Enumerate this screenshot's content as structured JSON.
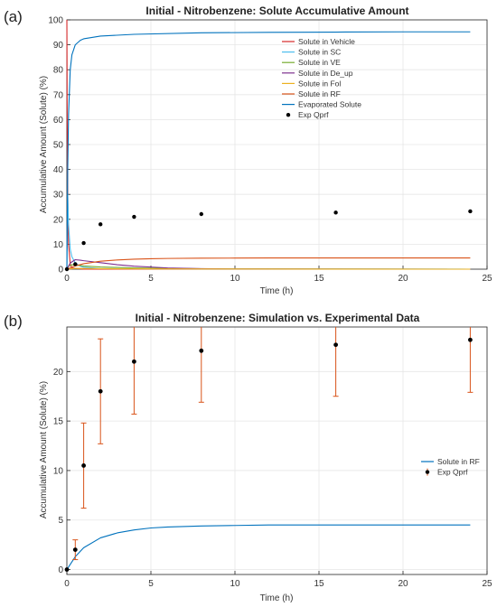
{
  "chart_data": [
    {
      "panel_label": "(a)",
      "type": "line",
      "title": "Initial - Nitrobenzene: Solute Accumulative Amount",
      "xlabel": "Time (h)",
      "ylabel": "Accumulative Amount (Solute) (%)",
      "xlim": [
        0,
        25
      ],
      "ylim": [
        0,
        100
      ],
      "xticks": [
        0,
        5,
        10,
        15,
        20,
        25
      ],
      "yticks": [
        0,
        10,
        20,
        30,
        40,
        50,
        60,
        70,
        80,
        90,
        100
      ],
      "grid": true,
      "legend_position": "upper-right",
      "series": [
        {
          "name": "Solute in Vehicle",
          "color": "#d62728",
          "kind": "line",
          "x": [
            0,
            0.02,
            0.05,
            0.1,
            0.2,
            0.3,
            1,
            24
          ],
          "y": [
            100,
            60,
            30,
            10,
            2,
            0.5,
            0,
            0
          ]
        },
        {
          "name": "Solute in SC",
          "color": "#4dbeee",
          "kind": "line",
          "x": [
            0,
            0.05,
            0.1,
            0.2,
            0.3,
            0.5,
            0.8,
            1,
            2,
            24
          ],
          "y": [
            0,
            30,
            18,
            8,
            5,
            2.5,
            1.2,
            0.8,
            0.2,
            0
          ]
        },
        {
          "name": "Solute in VE",
          "color": "#77ac30",
          "kind": "line",
          "x": [
            0,
            0.1,
            0.3,
            0.6,
            1,
            2,
            4,
            6,
            8,
            10,
            24
          ],
          "y": [
            0,
            1.2,
            1.8,
            1.6,
            1.3,
            0.9,
            0.5,
            0.3,
            0.15,
            0.05,
            0
          ]
        },
        {
          "name": "Solute in De_up",
          "color": "#7e2f8e",
          "kind": "line",
          "x": [
            0,
            0.2,
            0.5,
            0.8,
            1,
            2,
            3,
            4,
            6,
            8,
            10,
            24
          ],
          "y": [
            0,
            2.5,
            3.8,
            3.6,
            3.4,
            2.6,
            1.8,
            1.2,
            0.5,
            0.2,
            0.05,
            0
          ]
        },
        {
          "name": "Solute in Fol",
          "color": "#edb120",
          "kind": "line",
          "x": [
            0,
            0.5,
            1,
            2,
            5,
            24
          ],
          "y": [
            0,
            0.3,
            0.3,
            0.2,
            0.1,
            0
          ]
        },
        {
          "name": "Solute in RF",
          "color": "#d95319",
          "kind": "line",
          "x": [
            0,
            0.5,
            1,
            2,
            3,
            4,
            5,
            6,
            8,
            10,
            12,
            16,
            20,
            24
          ],
          "y": [
            0,
            1.3,
            2.2,
            3.2,
            3.7,
            4.0,
            4.2,
            4.3,
            4.4,
            4.45,
            4.5,
            4.5,
            4.5,
            4.5
          ]
        },
        {
          "name": "Evaporated Solute",
          "color": "#0072bd",
          "kind": "line",
          "x": [
            0,
            0.05,
            0.1,
            0.2,
            0.3,
            0.5,
            0.8,
            1,
            2,
            4,
            8,
            12,
            16,
            20,
            24
          ],
          "y": [
            0,
            40,
            62,
            80,
            86,
            90,
            91.8,
            92.4,
            93.5,
            94.2,
            94.8,
            95.0,
            95.1,
            95.2,
            95.2
          ]
        },
        {
          "name": "Exp Qprf",
          "color": "#000000",
          "kind": "points",
          "x": [
            0,
            0.5,
            1,
            2,
            4,
            8,
            16,
            24
          ],
          "y": [
            0,
            2.0,
            10.5,
            18.0,
            21.0,
            22.1,
            22.7,
            23.2
          ]
        }
      ]
    },
    {
      "panel_label": "(b)",
      "type": "line",
      "title": "Initial - Nitrobenzene: Simulation vs. Experimental Data",
      "xlabel": "Time (h)",
      "ylabel": "Accumulative Amount (Solute) (%)",
      "xlim": [
        0,
        25
      ],
      "ylim": [
        -0.5,
        24.5
      ],
      "xticks": [
        0,
        5,
        10,
        15,
        20,
        25
      ],
      "yticks": [
        0,
        5,
        10,
        15,
        20
      ],
      "grid": true,
      "legend_position": "right",
      "series": [
        {
          "name": "Solute in RF",
          "color": "#0072bd",
          "kind": "line",
          "x": [
            0,
            0.5,
            1,
            2,
            3,
            4,
            5,
            6,
            8,
            10,
            12,
            16,
            20,
            24
          ],
          "y": [
            0,
            1.3,
            2.2,
            3.2,
            3.7,
            4.0,
            4.2,
            4.3,
            4.4,
            4.45,
            4.5,
            4.5,
            4.5,
            4.5
          ]
        },
        {
          "name": "Exp Qprf",
          "color": "#000000",
          "error_color": "#d95319",
          "kind": "errorbar",
          "x": [
            0,
            0.5,
            1,
            2,
            4,
            8,
            16,
            24
          ],
          "y": [
            0,
            2.0,
            10.5,
            18.0,
            21.0,
            22.1,
            22.7,
            23.2
          ],
          "err": [
            0,
            1.0,
            4.3,
            5.3,
            5.3,
            5.2,
            5.2,
            5.3
          ]
        }
      ]
    }
  ]
}
